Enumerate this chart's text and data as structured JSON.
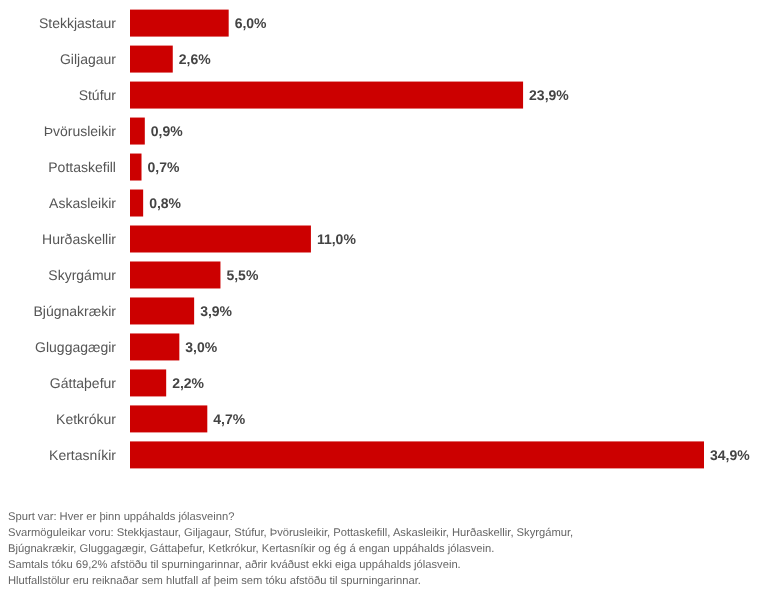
{
  "chart_data": {
    "type": "bar",
    "orientation": "horizontal",
    "categories": [
      "Stekkjastaur",
      "Giljagaur",
      "Stúfur",
      "Þvörusleikir",
      "Pottaskefill",
      "Askasleikir",
      "Hurðaskellir",
      "Skyrgámur",
      "Bjúgnakrækir",
      "Gluggagægir",
      "Gáttaþefur",
      "Ketkrókur",
      "Kertasníkir"
    ],
    "values": [
      6.0,
      2.6,
      23.9,
      0.9,
      0.7,
      0.8,
      11.0,
      5.5,
      3.9,
      3.0,
      2.2,
      4.7,
      34.9
    ],
    "value_labels": [
      "6,0%",
      "2,6%",
      "23,9%",
      "0,9%",
      "0,7%",
      "0,8%",
      "11,0%",
      "5,5%",
      "3,9%",
      "3,0%",
      "2,2%",
      "4,7%",
      "34,9%"
    ],
    "color": "#cc0000",
    "annotations": [
      "Spurt var: Hver er þinn uppáhalds jólasveinn?",
      "Svarmöguleikar voru: Stekkjastaur, Giljagaur, Stúfur, Þvörusleikir, Pottaskefill, Askasleikir, Hurðaskellir, Skyrgámur, Bjúgnakrækir, Gluggagægir, Gáttaþefur, Ketkrókur, Kertasníkir og ég á engan uppáhalds jólasvein.",
      "Samtals tóku 69,2% afstöðu til spurningarinnar, aðrir kváðust ekki eiga uppáhalds jólasvein.",
      "Hlutfallstölur eru reiknaðar sem hlutfall af þeim sem tóku afstöðu til spurningarinnar."
    ]
  }
}
